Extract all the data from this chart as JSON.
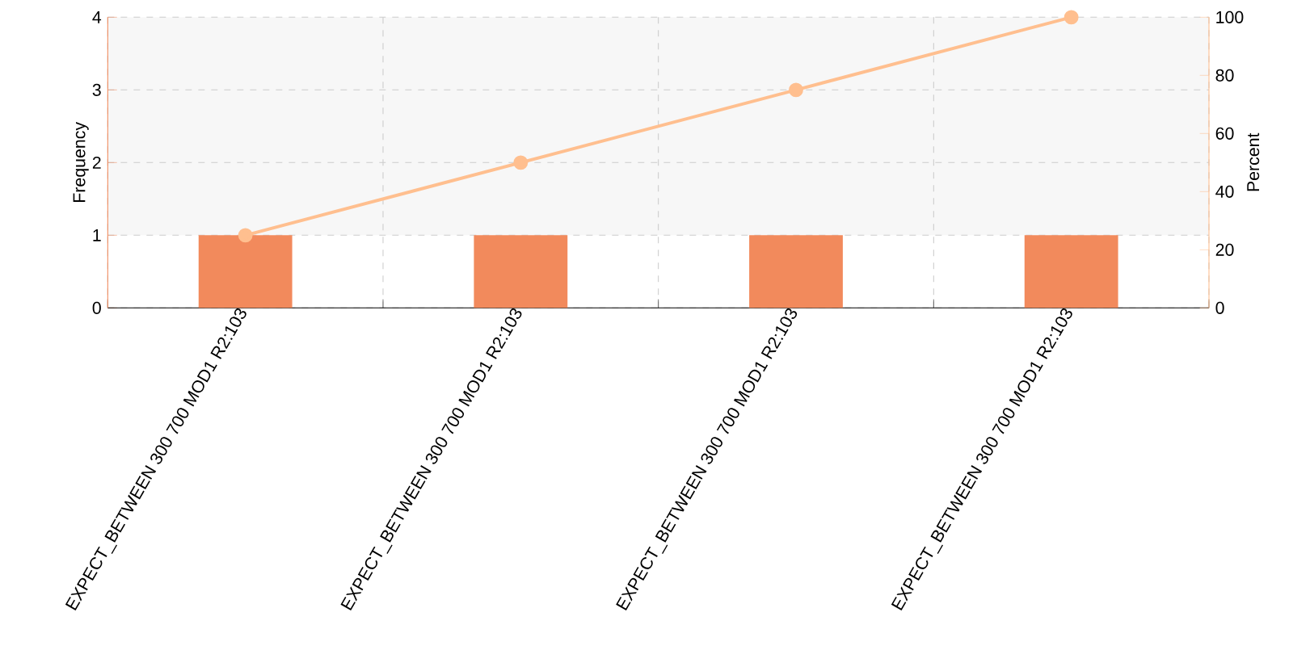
{
  "chart_data": {
    "type": "bar",
    "ylabel": "Frequency",
    "y2label": "Percent",
    "categories": [
      "EXPECT_BETWEEN 300 700 MOD1 R2:103",
      "EXPECT_BETWEEN 300 700 MOD1 R2:103",
      "EXPECT_BETWEEN 300 700 MOD1 R2:103",
      "EXPECT_BETWEEN 300 700 MOD1 R2:103"
    ],
    "series": [
      {
        "color": "#f28a5c",
        "values": [
          1,
          1,
          1,
          1
        ]
      },
      {
        "type": "line",
        "axis": "y2",
        "marker": "circle",
        "color": "#ffbf8f",
        "values": [
          25,
          50,
          75,
          100
        ]
      }
    ],
    "ylim": [
      0,
      4
    ],
    "yticks": [
      0,
      1,
      2,
      3,
      4
    ],
    "y2lim": [
      0,
      100
    ],
    "y2ticks": [
      0,
      20,
      40,
      60,
      80,
      100
    ],
    "grid": true,
    "bands": [
      {
        "axis": "y",
        "from": 1,
        "to": 4,
        "color": "#f7f7f7"
      }
    ]
  }
}
